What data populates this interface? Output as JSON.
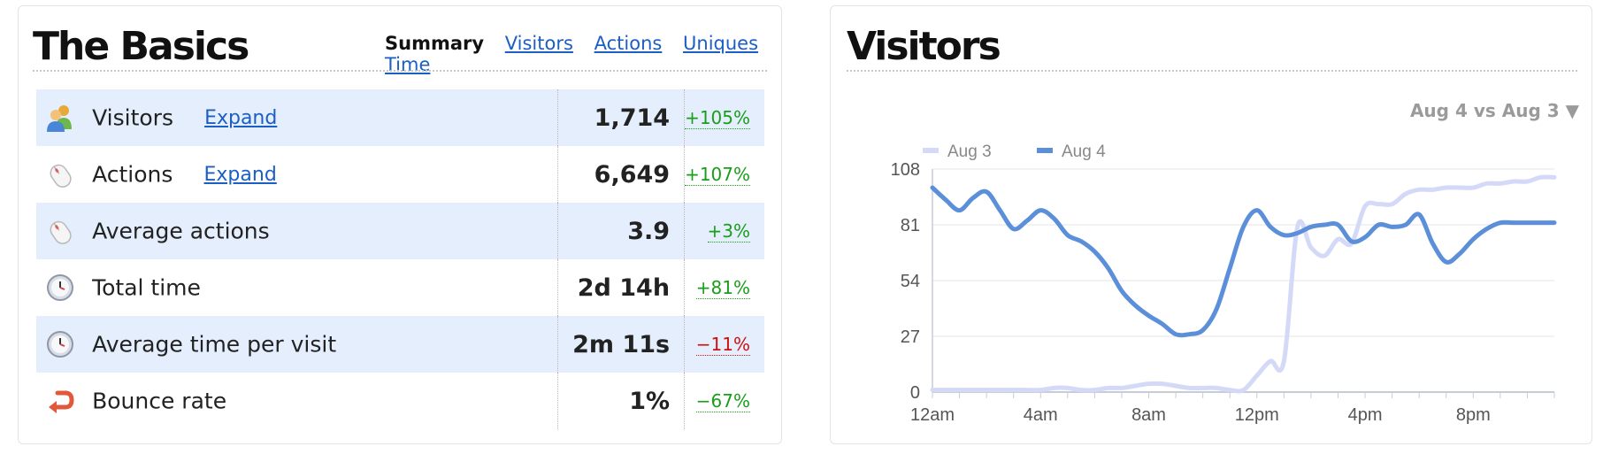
{
  "basics": {
    "title": "The Basics",
    "nav": {
      "summary": "Summary",
      "visitors": "Visitors",
      "actions": "Actions",
      "uniques": "Uniques",
      "time": "Time"
    },
    "rows": [
      {
        "label": "Visitors",
        "expand": "Expand",
        "value": "1,714",
        "change": "+105%",
        "icon": "users-icon"
      },
      {
        "label": "Actions",
        "expand": "Expand",
        "value": "6,649",
        "change": "+107%",
        "icon": "mouse-icon"
      },
      {
        "label": "Average actions",
        "value": "3.9",
        "change": "+3%",
        "icon": "mouse-icon"
      },
      {
        "label": "Total time",
        "value": "2d 14h",
        "change": "+81%",
        "icon": "clock-icon"
      },
      {
        "label": "Average time per visit",
        "value": "2m 11s",
        "change": "−11%",
        "icon": "clock-icon"
      },
      {
        "label": "Bounce rate",
        "value": "1%",
        "change": "−67%",
        "icon": "bounce-arrow-icon"
      }
    ]
  },
  "visitors_panel": {
    "title": "Visitors",
    "compare": "Aug 4 vs Aug 3 ▼"
  },
  "colors": {
    "positive": "#1a9e1a",
    "negative": "#cc1111",
    "link": "#1b5fc4",
    "row_shade": "#e4eefc",
    "series_aug3": "#d4d9f7",
    "series_aug4": "#5b8fd9"
  },
  "chart_data": {
    "type": "line",
    "legend": "top-left",
    "grid": true,
    "ylim": [
      0,
      108
    ],
    "yticks": [
      0,
      27,
      54,
      81,
      108
    ],
    "xlim": [
      0,
      23
    ],
    "xticks": [
      0,
      4,
      8,
      12,
      16,
      20
    ],
    "xtick_labels": [
      "12am",
      "4am",
      "8am",
      "12pm",
      "4pm",
      "8pm"
    ],
    "x": [
      0,
      0.5,
      1,
      1.5,
      2,
      2.5,
      3,
      3.5,
      4,
      4.5,
      5,
      5.5,
      6,
      6.5,
      7,
      7.5,
      8,
      8.5,
      9,
      9.5,
      10,
      10.5,
      11,
      11.5,
      12,
      12.5,
      13,
      13.5,
      14,
      14.5,
      15,
      15.5,
      16,
      16.5,
      17,
      17.5,
      18,
      18.5,
      19,
      19.5,
      20,
      20.5,
      21,
      21.5,
      22,
      22.5,
      23
    ],
    "series": [
      {
        "name": "Aug 3",
        "values": [
          1,
          1,
          1,
          1,
          1,
          1,
          1,
          1,
          1,
          2,
          2,
          1,
          1,
          2,
          2,
          3,
          4,
          4,
          3,
          2,
          2,
          2,
          1,
          1,
          8,
          15,
          15,
          80,
          70,
          66,
          74,
          72,
          90,
          91,
          91,
          96,
          98,
          98,
          99,
          99,
          99,
          101,
          101,
          102,
          102,
          104,
          104
        ]
      },
      {
        "name": "Aug 4",
        "values": [
          99,
          93,
          88,
          94,
          97,
          88,
          79,
          83,
          88,
          84,
          76,
          73,
          68,
          60,
          49,
          42,
          37,
          33,
          28,
          28,
          30,
          40,
          60,
          80,
          88,
          80,
          76,
          77,
          80,
          81,
          81,
          73,
          75,
          81,
          80,
          81,
          86,
          72,
          63,
          67,
          74,
          79,
          82,
          82,
          82,
          82,
          82
        ]
      }
    ]
  }
}
